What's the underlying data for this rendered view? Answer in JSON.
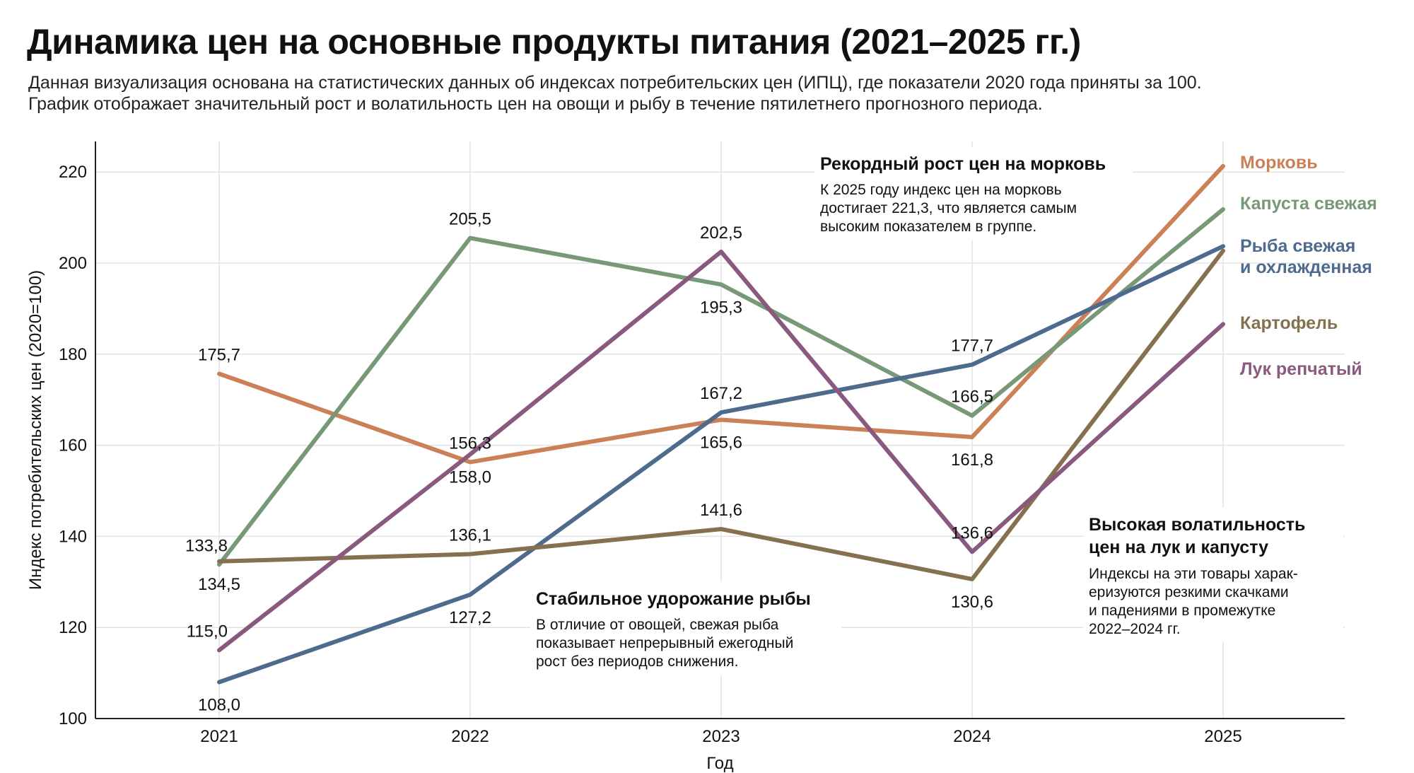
{
  "title": "Динамика цен на основные продукты питания (2021–2025 гг.)",
  "subtitle": [
    "Данная визуализация основана на статистических данных об индексах потребительских цен (ИПЦ), где показатели 2020 года приняты за 100.",
    "График отображает значительный рост и волатильность цен на овощи и рыбу в течение пятилетнего прогнозного периода."
  ],
  "chart_data": {
    "type": "line",
    "xlabel": "Год",
    "ylabel": "Индекс потребительских цен (2020=100)",
    "categories": [
      "2021",
      "2022",
      "2023",
      "2024",
      "2025"
    ],
    "ylim": [
      100,
      225
    ],
    "yticks": [
      100,
      120,
      140,
      160,
      180,
      200,
      220
    ],
    "grid": true,
    "series": [
      {
        "name": "Морковь",
        "legend": [
          "Морковь"
        ],
        "color": "#CB8057",
        "values": [
          175.7,
          156.3,
          165.6,
          161.8,
          221.3
        ]
      },
      {
        "name": "Капуста свежая",
        "legend": [
          "Капуста свежая"
        ],
        "color": "#779978",
        "values": [
          133.8,
          205.5,
          195.3,
          166.5,
          211.8
        ]
      },
      {
        "name": "Рыба свежая и охлажденная",
        "legend": [
          "Рыба свежая",
          "и охлажденная"
        ],
        "color": "#4E6B8E",
        "values": [
          108.0,
          127.2,
          167.2,
          177.7,
          203.7
        ]
      },
      {
        "name": "Картофель",
        "legend": [
          "Картофель"
        ],
        "color": "#85704F",
        "values": [
          134.5,
          136.1,
          141.6,
          130.6,
          202.7
        ]
      },
      {
        "name": "Лук репчатый",
        "legend": [
          "Лук репчатый"
        ],
        "color": "#8A5A7E",
        "values": [
          115.0,
          158.0,
          202.5,
          136.6,
          186.6
        ]
      }
    ],
    "data_labels": [
      {
        "text": "175,7",
        "category": "2021",
        "value": 175.7,
        "pos": "above"
      },
      {
        "text": "133,8",
        "category": "2021",
        "value": 133.8,
        "pos": "above-left"
      },
      {
        "text": "134,5",
        "category": "2021",
        "value": 134.5,
        "pos": "below"
      },
      {
        "text": "115,0",
        "category": "2021",
        "value": 115.0,
        "pos": "above-left"
      },
      {
        "text": "108,0",
        "category": "2021",
        "value": 108.0,
        "pos": "below"
      },
      {
        "text": "205,5",
        "category": "2022",
        "value": 205.5,
        "pos": "above"
      },
      {
        "text": "156,3",
        "category": "2022",
        "value": 156.3,
        "pos": "above"
      },
      {
        "text": "158,0",
        "category": "2022",
        "value": 158.0,
        "pos": "below"
      },
      {
        "text": "136,1",
        "category": "2022",
        "value": 136.1,
        "pos": "above"
      },
      {
        "text": "127,2",
        "category": "2022",
        "value": 127.2,
        "pos": "below"
      },
      {
        "text": "202,5",
        "category": "2023",
        "value": 202.5,
        "pos": "above"
      },
      {
        "text": "195,3",
        "category": "2023",
        "value": 195.3,
        "pos": "below"
      },
      {
        "text": "167,2",
        "category": "2023",
        "value": 167.2,
        "pos": "above"
      },
      {
        "text": "165,6",
        "category": "2023",
        "value": 165.6,
        "pos": "below"
      },
      {
        "text": "141,6",
        "category": "2023",
        "value": 141.6,
        "pos": "above"
      },
      {
        "text": "177,7",
        "category": "2024",
        "value": 177.7,
        "pos": "above"
      },
      {
        "text": "166,5",
        "category": "2024",
        "value": 166.5,
        "pos": "above"
      },
      {
        "text": "161,8",
        "category": "2024",
        "value": 161.8,
        "pos": "below"
      },
      {
        "text": "136,6",
        "category": "2024",
        "value": 136.6,
        "pos": "above"
      },
      {
        "text": "130,6",
        "category": "2024",
        "value": 130.6,
        "pos": "below"
      }
    ],
    "annotations": [
      {
        "title": [
          "Рекордный рост цен на морковь"
        ],
        "body": [
          "К 2025 году индекс цен на морковь",
          "достигает 221,3, что является самым",
          "высоким показателем в группе."
        ]
      },
      {
        "title": [
          "Стабильное удорожание рыбы"
        ],
        "body": [
          "В отличие от овощей, свежая рыба",
          "показывает непрерывный ежегодный",
          "рост без периодов снижения."
        ]
      },
      {
        "title": [
          "Высокая волатильность",
          "цен на лук и капусту"
        ],
        "body": [
          "Индексы на эти товары харак-",
          "еризуются резкими скачками",
          "и падениями в промежутке",
          "2022–2024 гг."
        ]
      }
    ]
  }
}
